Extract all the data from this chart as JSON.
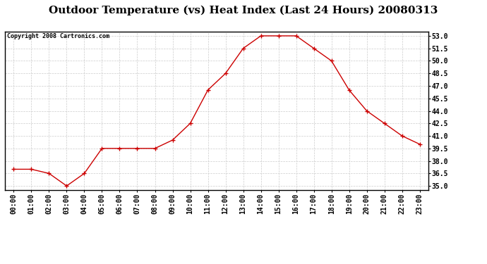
{
  "title": "Outdoor Temperature (vs) Heat Index (Last 24 Hours) 20080313",
  "copyright_text": "Copyright 2008 Cartronics.com",
  "x_labels": [
    "00:00",
    "01:00",
    "02:00",
    "03:00",
    "04:00",
    "05:00",
    "06:00",
    "07:00",
    "08:00",
    "09:00",
    "10:00",
    "11:00",
    "12:00",
    "13:00",
    "14:00",
    "15:00",
    "16:00",
    "17:00",
    "18:00",
    "19:00",
    "20:00",
    "21:00",
    "22:00",
    "23:00"
  ],
  "y_values": [
    37.0,
    37.0,
    36.5,
    35.0,
    36.5,
    39.5,
    39.5,
    39.5,
    39.5,
    40.5,
    42.5,
    46.5,
    48.5,
    51.5,
    53.0,
    53.0,
    53.0,
    51.5,
    50.0,
    46.5,
    44.0,
    42.5,
    41.0,
    40.0
  ],
  "line_color": "#cc0000",
  "marker": "+",
  "marker_size": 5,
  "marker_color": "#cc0000",
  "ylim_min": 35.0,
  "ylim_max": 53.0,
  "ytick_start": 35.0,
  "ytick_end": 53.0,
  "ytick_step": 1.5,
  "grid_color": "#cccccc",
  "background_color": "#ffffff",
  "title_fontsize": 11,
  "copyright_fontsize": 6,
  "tick_label_fontsize": 7,
  "ytick_label_fontsize": 7
}
